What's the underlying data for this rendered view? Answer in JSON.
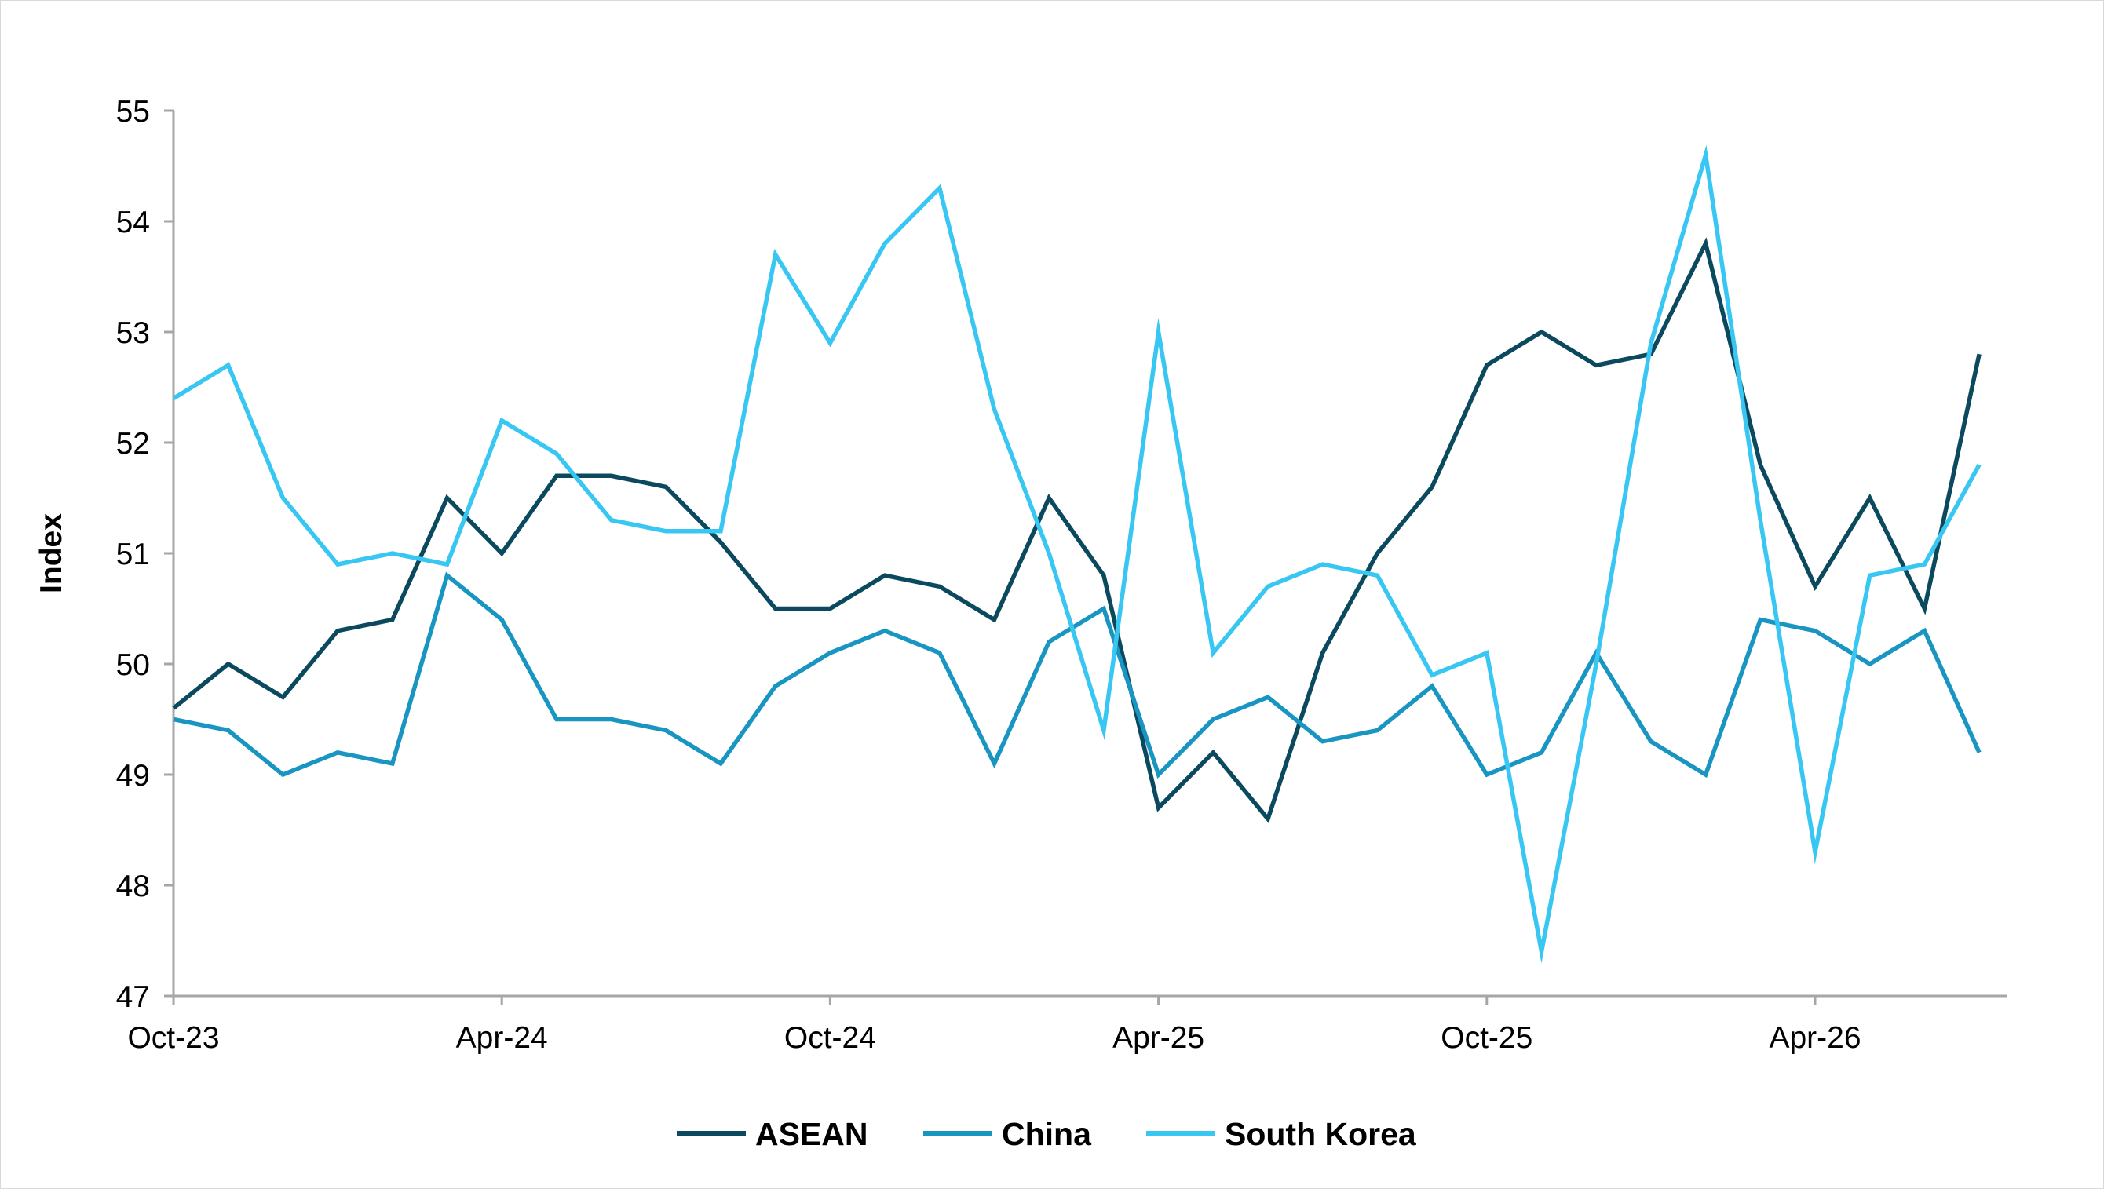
{
  "chart_data": {
    "type": "line",
    "title": "",
    "xlabel": "",
    "ylabel": "Index",
    "ylim": [
      47,
      55
    ],
    "yticks": [
      47,
      48,
      49,
      50,
      51,
      52,
      53,
      54,
      55
    ],
    "x": [
      "Oct-23",
      "Nov-23",
      "Dec-23",
      "Jan-24",
      "Feb-24",
      "Mar-24",
      "Apr-24",
      "May-24",
      "Jun-24",
      "Jul-24",
      "Aug-24",
      "Sep-24",
      "Oct-24",
      "Nov-24",
      "Dec-24",
      "Jan-25",
      "Feb-25",
      "Mar-25",
      "Apr-25",
      "May-25",
      "Jun-25",
      "Jul-25",
      "Aug-25",
      "Sep-25",
      "Oct-25",
      "Nov-25",
      "Dec-25",
      "Jan-26",
      "Feb-26",
      "Mar-26",
      "Apr-26",
      "May-26",
      "Jun-26",
      "Jul-26"
    ],
    "xtick_labels": [
      "Oct-23",
      "Apr-24",
      "Oct-24",
      "Apr-25",
      "Oct-25",
      "Apr-26"
    ],
    "grid": false,
    "legend_position": "bottom",
    "series": [
      {
        "name": "ASEAN",
        "color": "#0b4a5e",
        "values": [
          49.6,
          50.0,
          49.7,
          50.3,
          50.4,
          51.5,
          51.0,
          51.7,
          51.7,
          51.6,
          51.1,
          50.5,
          50.5,
          50.8,
          50.7,
          50.4,
          51.5,
          50.8,
          48.7,
          49.2,
          48.6,
          50.1,
          51.0,
          51.6,
          52.7,
          53.0,
          52.7,
          52.8,
          53.8,
          51.8,
          50.7,
          51.5,
          50.5,
          52.8
        ]
      },
      {
        "name": "China",
        "color": "#1995c2",
        "values": [
          49.5,
          49.4,
          49.0,
          49.2,
          49.1,
          50.8,
          50.4,
          49.5,
          49.5,
          49.4,
          49.1,
          49.8,
          50.1,
          50.3,
          50.1,
          49.1,
          50.2,
          50.5,
          49.0,
          49.5,
          49.7,
          49.3,
          49.4,
          49.8,
          49.0,
          49.2,
          50.1,
          49.3,
          49.0,
          50.4,
          50.3,
          50.0,
          50.3,
          49.2
        ]
      },
      {
        "name": "South Korea",
        "color": "#38c6f2",
        "values": [
          52.4,
          52.7,
          51.5,
          50.9,
          51.0,
          50.9,
          52.2,
          51.9,
          51.3,
          51.2,
          51.2,
          53.7,
          52.9,
          53.8,
          54.3,
          52.3,
          51.0,
          49.4,
          53.0,
          50.1,
          50.7,
          50.9,
          50.8,
          49.9,
          50.1,
          47.4,
          50.0,
          52.9,
          54.6,
          51.3,
          48.3,
          50.8,
          50.9,
          51.8
        ]
      }
    ]
  }
}
